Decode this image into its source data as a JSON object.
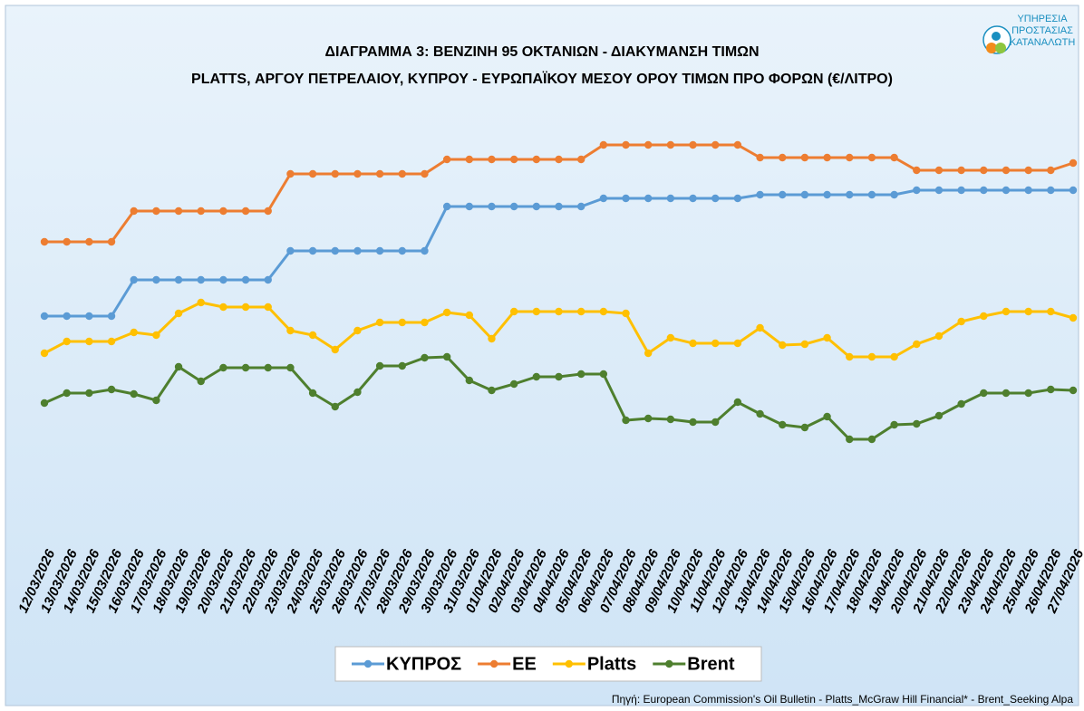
{
  "logo": {
    "lines": [
      "ΥΠΗΡΕΣΙΑ",
      "ΠΡΟΣΤΑΣΙΑΣ",
      "ΚΑΤΑΝΑΛΩΤΗ"
    ]
  },
  "chart_data": {
    "type": "line",
    "title": "ΔΙΑΓΡΑΜΜΑ 3: ΒΕΝΖΙΝΗ 95 ΟΚΤΑΝΙΩΝ - ΔΙΑΚΥΜΑΝΣΗ ΤΙΜΩΝ",
    "subtitle": "PLATTS, ΑΡΓΟΥ ΠΕΤΡΕΛΑΙΟΥ, ΚΥΠΡΟΥ - ΕΥΡΩΠΑΪΚΟΥ ΜΕΣΟΥ ΟΡΟΥ ΤΙΜΩΝ ΠΡΟ ΦΟΡΩΝ (€/ΛΙΤΡΟ)",
    "source": "Πηγή: European Commission's Oil Bulletin - Platts_McGraw Hill Financial* - Brent_Seeking Alpa",
    "x": [
      "12/03/2026",
      "13/03/2026",
      "14/03/2026",
      "15/03/2026",
      "16/03/2026",
      "17/03/2026",
      "18/03/2026",
      "19/03/2026",
      "20/03/2026",
      "21/03/2026",
      "22/03/2026",
      "23/03/2026",
      "24/03/2026",
      "25/03/2026",
      "26/03/2026",
      "27/03/2026",
      "28/03/2026",
      "29/03/2026",
      "30/03/2026",
      "31/03/2026",
      "01/04/2026",
      "02/04/2026",
      "03/04/2026",
      "04/04/2026",
      "05/04/2026",
      "06/04/2026",
      "07/04/2026",
      "08/04/2026",
      "09/04/2026",
      "10/04/2026",
      "11/04/2026",
      "12/04/2026",
      "13/04/2026",
      "14/04/2026",
      "15/04/2026",
      "16/04/2026",
      "17/04/2026",
      "18/04/2026",
      "19/04/2026",
      "20/04/2026",
      "21/04/2026",
      "22/04/2026",
      "23/04/2026",
      "24/04/2026",
      "25/04/2026",
      "26/04/2026",
      "27/04/2026"
    ],
    "ylim": [
      0,
      500
    ],
    "legend": "bottom",
    "series": [
      {
        "name": "ΚΥΠΡΟΣ",
        "color": "#5b9bd5",
        "values": [
          251,
          251,
          251,
          251,
          291,
          291,
          291,
          291,
          291,
          291,
          291,
          323,
          323,
          323,
          323,
          323,
          323,
          323,
          372,
          372,
          372,
          372,
          372,
          372,
          372,
          381,
          381,
          381,
          381,
          381,
          381,
          381,
          385,
          385,
          385,
          385,
          385,
          385,
          385,
          390,
          390,
          390,
          390,
          390,
          390,
          390,
          390
        ]
      },
      {
        "name": "ΕΕ",
        "color": "#ed7d31",
        "values": [
          333,
          333,
          333,
          333,
          367,
          367,
          367,
          367,
          367,
          367,
          367,
          408,
          408,
          408,
          408,
          408,
          408,
          408,
          424,
          424,
          424,
          424,
          424,
          424,
          424,
          440,
          440,
          440,
          440,
          440,
          440,
          440,
          426,
          426,
          426,
          426,
          426,
          426,
          426,
          412,
          412,
          412,
          412,
          412,
          412,
          412,
          420
        ]
      },
      {
        "name": "Platts",
        "color": "#ffc000",
        "values": [
          210,
          223,
          223,
          223,
          233,
          230,
          254,
          266,
          261,
          261,
          261,
          235,
          230,
          214,
          235,
          244,
          244,
          244,
          255,
          252,
          226,
          256,
          256,
          256,
          256,
          256,
          254,
          210,
          227,
          221,
          221,
          221,
          238,
          219,
          220,
          227,
          206,
          206,
          206,
          220,
          229,
          245,
          251,
          256,
          256,
          256,
          249
        ]
      },
      {
        "name": "Brent",
        "color": "#4e7f2e",
        "values": [
          155,
          166,
          166,
          170,
          165,
          158,
          195,
          179,
          194,
          194,
          194,
          194,
          166,
          151,
          167,
          196,
          196,
          205,
          206,
          180,
          169,
          176,
          184,
          184,
          187,
          187,
          136,
          138,
          137,
          134,
          134,
          156,
          143,
          131,
          128,
          140,
          115,
          115,
          131,
          132,
          141,
          154,
          166,
          166,
          166,
          170,
          169
        ]
      }
    ]
  }
}
